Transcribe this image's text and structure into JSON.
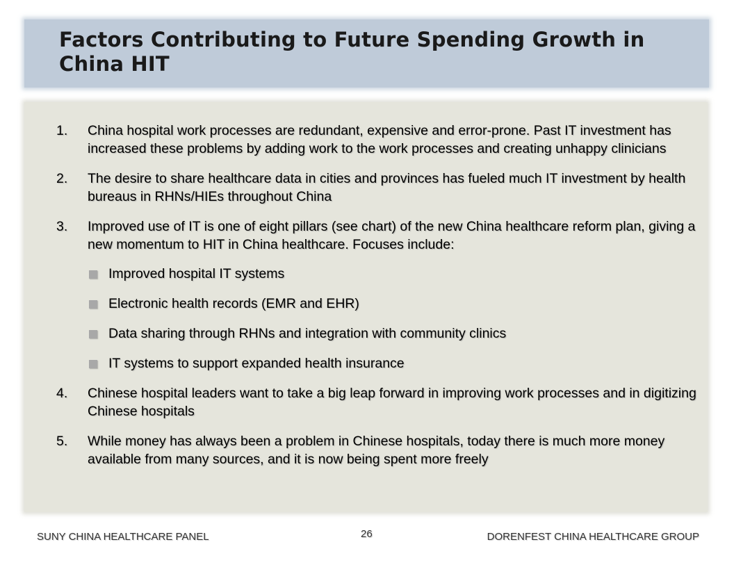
{
  "slide": {
    "title": "Factors Contributing to Future Spending Growth in China HIT",
    "items": [
      {
        "num": "1.",
        "text": "China hospital work processes are redundant, expensive and error-prone.  Past IT investment has increased these problems by adding work to the work processes and creating unhappy clinicians"
      },
      {
        "num": "2.",
        "text": "The desire to share healthcare data in cities and provinces has fueled much IT investment by health bureaus in RHNs/HIEs throughout China"
      },
      {
        "num": "3.",
        "text": "Improved use of IT is one of eight pillars (see chart) of the new China healthcare reform plan, giving a new momentum to HIT in China healthcare.  Focuses include:",
        "subitems": [
          "Improved hospital IT systems",
          "Electronic health records (EMR and EHR)",
          "Data sharing through RHNs and integration with community clinics",
          "IT systems to support expanded health insurance"
        ]
      },
      {
        "num": "4.",
        "text": "Chinese hospital leaders want to take a big leap forward in improving work processes and in digitizing Chinese hospitals"
      },
      {
        "num": "5.",
        "text": "While money has always been a problem in Chinese hospitals, today there is much more money available from many sources, and it is now being spent more freely"
      }
    ]
  },
  "footer": {
    "left": "SUNY CHINA HEALTHCARE PANEL",
    "page_number": "26",
    "right": "DORENFEST CHINA  HEALTHCARE GROUP"
  },
  "colors": {
    "title_band": "#bfcbd9",
    "content_band": "#e5e5dc",
    "bullet": "#a8a8a8"
  }
}
